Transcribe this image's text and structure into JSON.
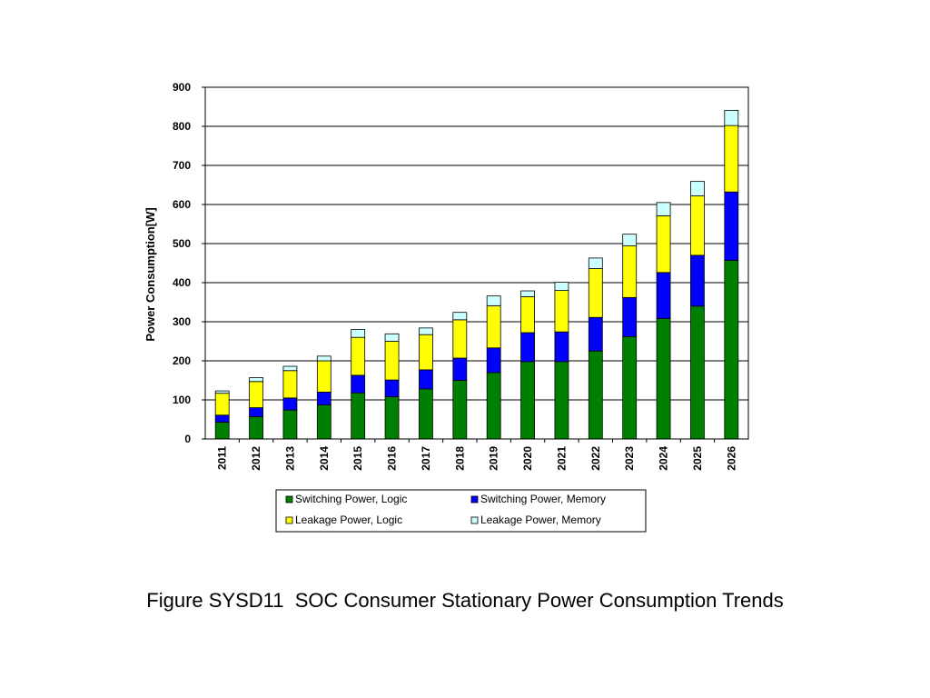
{
  "caption": "Figure SYSD11  SOC Consumer Stationary Power Consumption Trends",
  "chart_data": {
    "type": "bar",
    "stacked": true,
    "title": "",
    "xlabel": "",
    "ylabel": "Power Consumption[W]",
    "ylim": [
      0,
      900
    ],
    "yticks": [
      0,
      100,
      200,
      300,
      400,
      500,
      600,
      700,
      800,
      900
    ],
    "grid": true,
    "legend_position": "bottom",
    "categories": [
      "2011",
      "2012",
      "2013",
      "2014",
      "2015",
      "2016",
      "2017",
      "2018",
      "2019",
      "2020",
      "2021",
      "2022",
      "2023",
      "2024",
      "2025",
      "2026"
    ],
    "series": [
      {
        "name": "Switching Power, Logic",
        "color": "#008000",
        "values": [
          43,
          57,
          74,
          87,
          118,
          108,
          128,
          150,
          170,
          198,
          198,
          225,
          262,
          308,
          340,
          457
        ]
      },
      {
        "name": "Switching Power, Memory",
        "color": "#0000ff",
        "values": [
          18,
          23,
          31,
          33,
          45,
          43,
          49,
          57,
          63,
          74,
          76,
          86,
          100,
          118,
          130,
          175
        ]
      },
      {
        "name": "Leakage Power, Logic",
        "color": "#ffff00",
        "values": [
          56,
          67,
          70,
          80,
          97,
          99,
          90,
          98,
          108,
          92,
          106,
          125,
          132,
          145,
          152,
          170
        ]
      },
      {
        "name": "Leakage Power, Memory",
        "color": "#ccffff",
        "values": [
          6,
          10,
          11,
          12,
          20,
          19,
          17,
          19,
          25,
          15,
          21,
          27,
          30,
          34,
          37,
          39
        ]
      }
    ],
    "legend_layout": [
      [
        0,
        1
      ],
      [
        2,
        3
      ]
    ]
  }
}
